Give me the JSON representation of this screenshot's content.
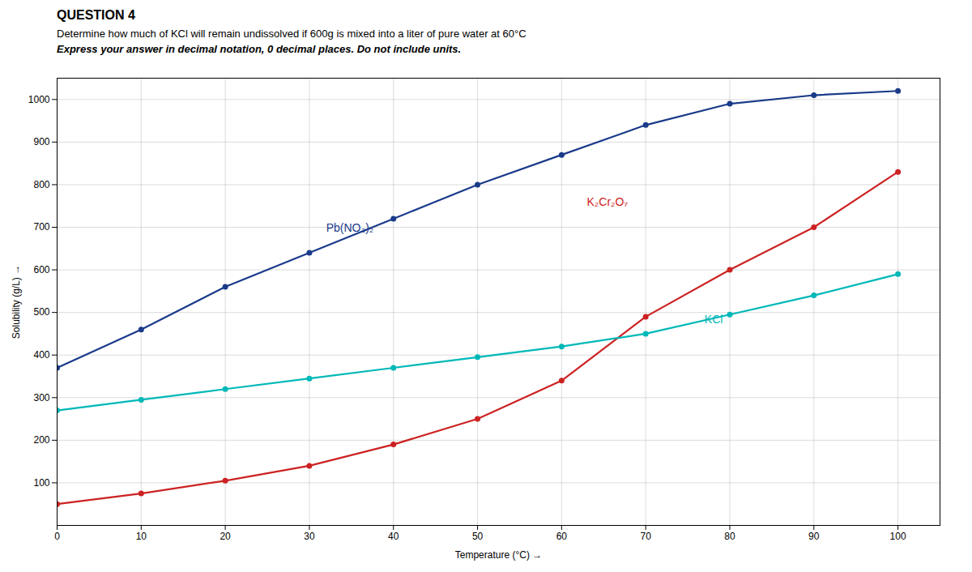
{
  "chart_data": {
    "type": "line",
    "title": "QUESTION 4",
    "subtitle": [
      "Determine how much of KCl will remain undissolved if 600g is mixed into a liter of pure water at 60°C",
      "Express your answer in decimal notation, 0 decimal places.  Do not include units."
    ],
    "xlabel": "Temperature (°C)",
    "ylabel": "Solubility (g/L)",
    "x": [
      0,
      10,
      20,
      30,
      40,
      50,
      60,
      70,
      80,
      90,
      100
    ],
    "series": [
      {
        "name": "Pb(NO₃)₂",
        "color": "#1a3a8a",
        "values": [
          370,
          460,
          560,
          640,
          720,
          800,
          870,
          940,
          990,
          1010,
          1020
        ]
      },
      {
        "name": "K₂Cr₂O₇",
        "color": "#cc2222",
        "values": [
          50,
          75,
          105,
          140,
          190,
          250,
          340,
          490,
          600,
          700,
          830
        ]
      },
      {
        "name": "KCl",
        "color": "#00b8b8",
        "values": [
          270,
          295,
          320,
          345,
          370,
          395,
          420,
          450,
          495,
          540,
          590
        ]
      }
    ],
    "annotations": [
      {
        "text": "Pb(NO₃)₂",
        "x": 32,
        "y": 690
      },
      {
        "text": "K₂Cr₂O₇",
        "x": 63,
        "y": 750
      },
      {
        "text": "KCl",
        "x": 77,
        "y": 475
      }
    ],
    "xlim": [
      0,
      105
    ],
    "ylim": [
      0,
      1050
    ],
    "xticks": [
      0,
      10,
      20,
      30,
      40,
      50,
      60,
      70,
      80,
      90,
      100
    ],
    "yticks": [
      100,
      200,
      300,
      400,
      500,
      600,
      700,
      800,
      900,
      1000
    ],
    "grid": true,
    "marker": "circle"
  }
}
